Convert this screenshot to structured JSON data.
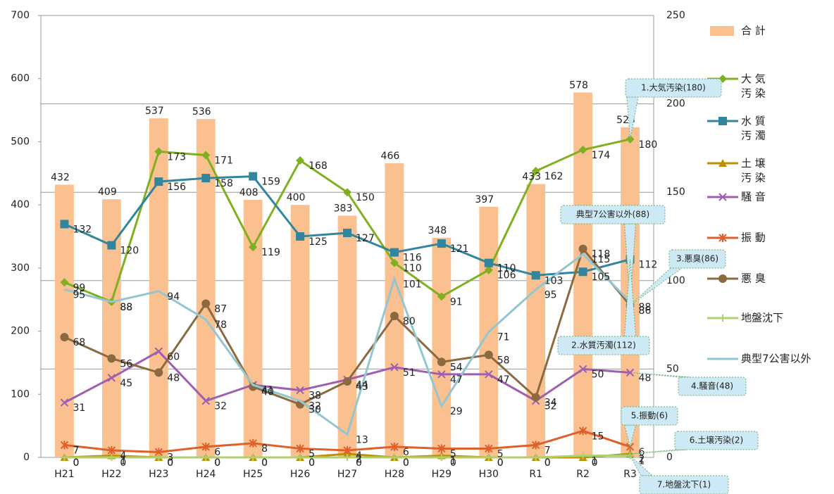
{
  "chart_data": {
    "type": "bar-line",
    "categories": [
      "H21",
      "H22",
      "H23",
      "H24",
      "H25",
      "H26",
      "H27",
      "H28",
      "H29",
      "H30",
      "R1",
      "R2",
      "R3"
    ],
    "ylim": [
      0,
      700
    ],
    "yticks": [
      0,
      100,
      200,
      300,
      400,
      500,
      600,
      700
    ],
    "y2lim": [
      0,
      250
    ],
    "y2ticks": [
      0,
      50,
      100,
      150,
      200,
      250
    ],
    "grid": "y2",
    "legend": "right",
    "series": [
      {
        "name": "合 計",
        "type": "bar",
        "color": "#fac090",
        "values": [
          432,
          409,
          537,
          536,
          408,
          400,
          383,
          466,
          348,
          397,
          433,
          578,
          523
        ]
      },
      {
        "name": "大 気\n汚 染",
        "type": "line",
        "axis": "y2",
        "marker": "diamond",
        "color": "#7fb020",
        "values": [
          99,
          88,
          173,
          171,
          119,
          168,
          150,
          110,
          91,
          106,
          162,
          174,
          180
        ]
      },
      {
        "name": "水 質\n汚 濁",
        "type": "line",
        "axis": "y2",
        "marker": "square",
        "color": "#31859c",
        "values": [
          132,
          120,
          156,
          158,
          159,
          125,
          127,
          116,
          121,
          110,
          103,
          105,
          112
        ]
      },
      {
        "name": "土 壌\n汚 染",
        "type": "line",
        "axis": "y2",
        "marker": "triangle",
        "color": "#c09000",
        "values": [
          0,
          1,
          0,
          0,
          0,
          0,
          2,
          0,
          1,
          0,
          0,
          0,
          2
        ]
      },
      {
        "name": "騒 音",
        "type": "line",
        "axis": "y2",
        "marker": "x",
        "color": "#9f5fb0",
        "values": [
          31,
          45,
          60,
          32,
          41,
          38,
          44,
          51,
          47,
          47,
          32,
          50,
          48
        ]
      },
      {
        "name": "振 動",
        "type": "line",
        "axis": "y2",
        "marker": "asterisk",
        "color": "#e0602a",
        "values": [
          7,
          4,
          3,
          6,
          8,
          5,
          4,
          6,
          5,
          5,
          7,
          15,
          6
        ]
      },
      {
        "name": "悪 臭",
        "type": "line",
        "axis": "y2",
        "marker": "circle",
        "color": "#8b6a40",
        "values": [
          68,
          56,
          48,
          87,
          40,
          30,
          43,
          80,
          54,
          58,
          34,
          118,
          86
        ]
      },
      {
        "name": "地盤沈下",
        "type": "line",
        "axis": "y2",
        "marker": "plus",
        "color": "#b0d070",
        "values": [
          0,
          0,
          0,
          0,
          0,
          0,
          0,
          0,
          0,
          0,
          0,
          1,
          1
        ]
      },
      {
        "name": "典型7公害以外",
        "type": "line",
        "axis": "y2",
        "marker": "none",
        "color": "#93c6d0",
        "values": [
          95,
          88,
          94,
          78,
          41,
          32,
          13,
          101,
          29,
          71,
          95,
          115,
          88
        ]
      }
    ],
    "annotations": [
      "1.大気汚染(180)",
      "典型7公害以外(88)",
      "3.悪臭(86)",
      "2.水質汚濁(112)",
      "4.騒音(48)",
      "5.振動(6)",
      "6.土壌汚染(2)",
      "7.地盤沈下(1)"
    ]
  }
}
